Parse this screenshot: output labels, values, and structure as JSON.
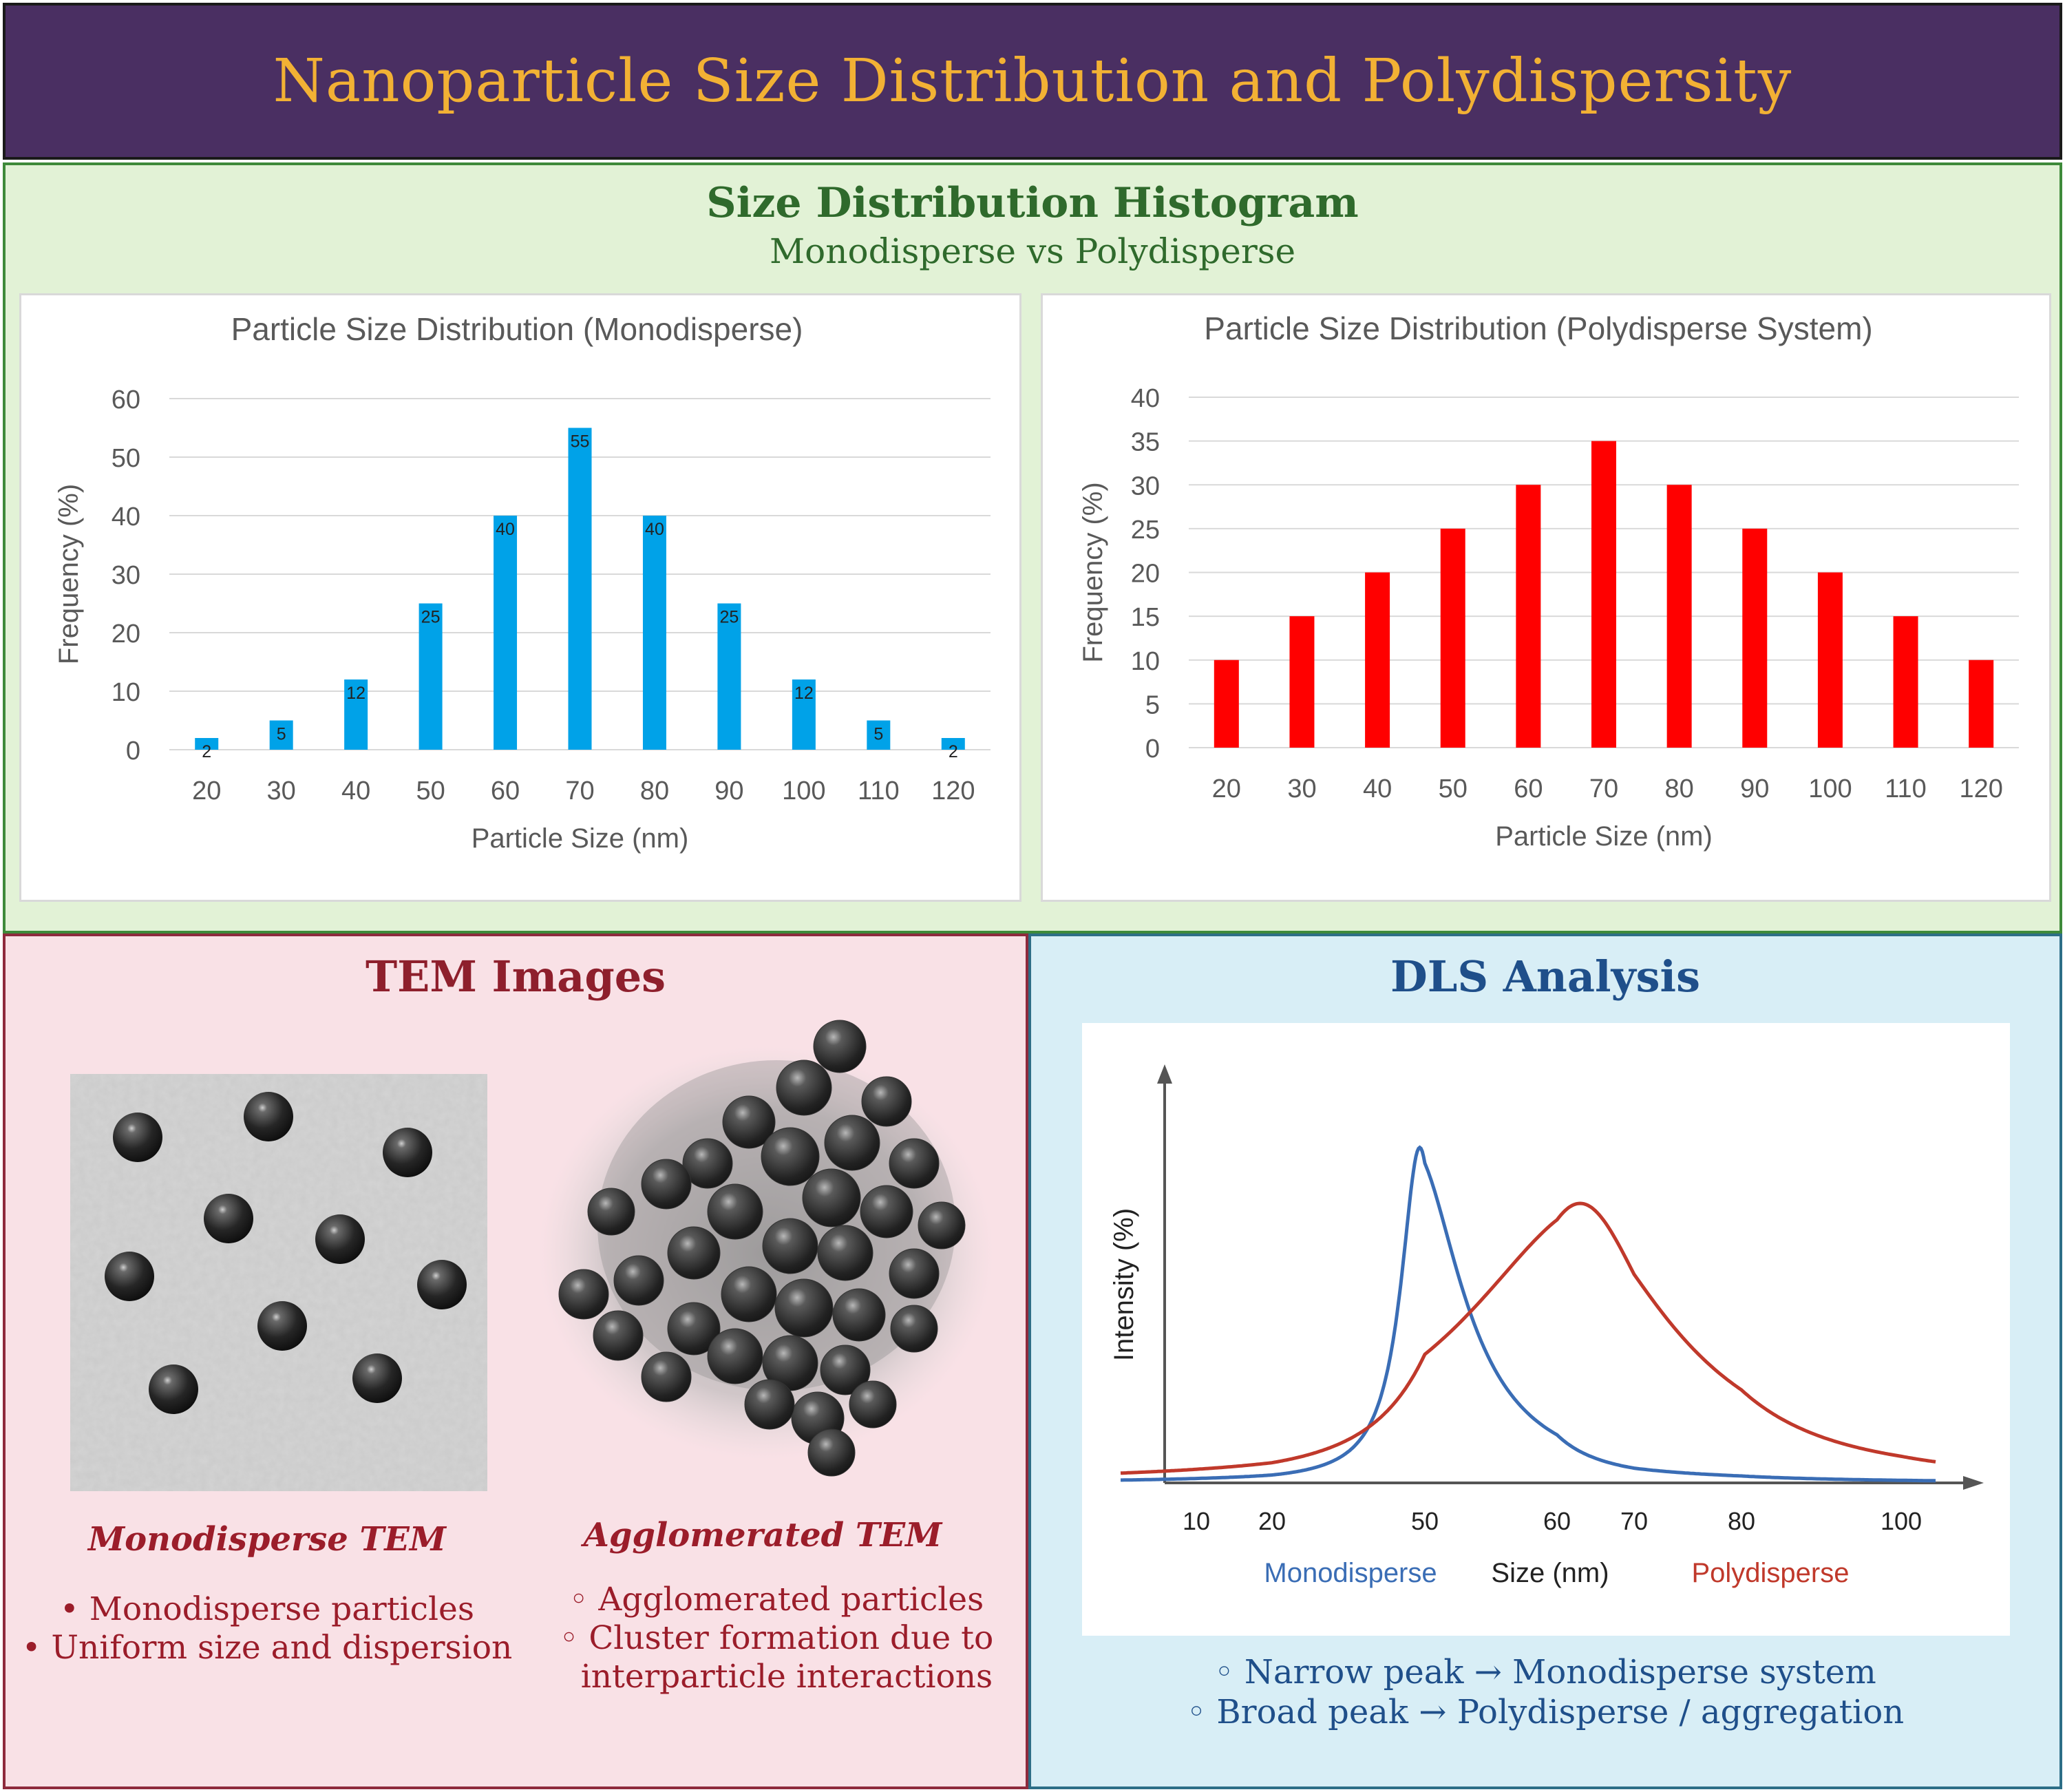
{
  "header": {
    "title": "Nanoparticle Size Distribution and Polydispersity"
  },
  "histogram_section": {
    "title": "Size Distribution Histogram",
    "subtitle": "Monodisperse vs Polydisperse"
  },
  "chart_data": [
    {
      "type": "bar",
      "title": "Particle Size Distribution (Monodisperse)",
      "xlabel": "Particle Size (nm)",
      "ylabel": "Frequency (%)",
      "categories": [
        "20",
        "30",
        "40",
        "50",
        "60",
        "70",
        "80",
        "90",
        "100",
        "110",
        "120"
      ],
      "values": [
        2,
        5,
        12,
        25,
        40,
        55,
        40,
        25,
        12,
        5,
        2
      ],
      "data_labels": [
        "2",
        "5",
        "12",
        "25",
        "40",
        "55",
        "40",
        "25",
        "12",
        "5",
        "2"
      ],
      "ylim": [
        0,
        60
      ],
      "yticks": [
        "0",
        "10",
        "20",
        "30",
        "40",
        "50",
        "60"
      ],
      "grid": true,
      "color": "#00a2e8"
    },
    {
      "type": "bar",
      "title": "Particle Size Distribution (Polydisperse System)",
      "xlabel": "Particle Size (nm)",
      "ylabel": "Frequency (%)",
      "categories": [
        "20",
        "30",
        "40",
        "50",
        "60",
        "70",
        "80",
        "90",
        "100",
        "110",
        "120"
      ],
      "values": [
        10,
        15,
        20,
        25,
        30,
        35,
        30,
        25,
        20,
        15,
        10
      ],
      "ylim": [
        0,
        40
      ],
      "yticks": [
        "0",
        "5",
        "10",
        "15",
        "20",
        "25",
        "30",
        "35",
        "40"
      ],
      "grid": true,
      "color": "#ff0000"
    },
    {
      "type": "line",
      "title": "DLS Analysis",
      "xlabel": "Size (nm)",
      "ylabel": "Intensity (%)",
      "xticks": [
        "10",
        "20",
        "50",
        "60",
        "70",
        "80",
        "100"
      ],
      "series": [
        {
          "name": "Monodisperse",
          "color": "#3a6db5",
          "peak_x": 49,
          "peak_y": 0.84,
          "width": 4.5
        },
        {
          "name": "Polydisperse",
          "color": "#c0392b",
          "peak_x": 63,
          "peak_y": 0.7,
          "width": 12
        }
      ]
    }
  ],
  "tem_section": {
    "title": "TEM Images",
    "mono_caption": "Monodisperse TEM",
    "agg_caption": "Agglomerated TEM",
    "mono_points": [
      "Monodisperse particles",
      "Uniform size and dispersion"
    ],
    "agg_points": [
      "Agglomerated particles",
      "Cluster formation due to",
      "interparticle interactions"
    ]
  },
  "dls_section": {
    "title": "DLS Analysis",
    "points": [
      "Narrow peak → Monodisperse system",
      "Broad peak → Polydisperse / aggregation"
    ]
  }
}
